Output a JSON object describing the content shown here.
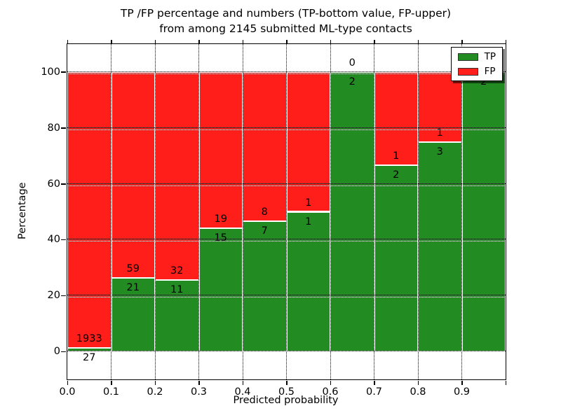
{
  "figure": {
    "title_line1": "TP /FP percentage and numbers (TP-bottom value, FP-upper)",
    "title_line2": "from among 2145 submitted ML-type contacts",
    "xlabel": "Predicted probability",
    "ylabel": "Percentage"
  },
  "legend": {
    "items": [
      {
        "label": "TP",
        "color": "#228b22"
      },
      {
        "label": "FP",
        "color": "#ff1e1a"
      }
    ]
  },
  "chart_data": {
    "type": "bar",
    "stacked": true,
    "title": "TP /FP percentage and numbers (TP-bottom value, FP-upper) from among 2145 submitted ML-type contacts",
    "xlabel": "Predicted probability",
    "ylabel": "Percentage",
    "total_contacts": 2145,
    "xlim": [
      0.0,
      1.0
    ],
    "ylim": [
      -10,
      110
    ],
    "bin_width": 0.1,
    "x_tick_labels": [
      "0.0",
      "0.1",
      "0.2",
      "0.3",
      "0.4",
      "0.5",
      "0.6",
      "0.7",
      "0.8",
      "0.9"
    ],
    "y_tick_values": [
      0,
      20,
      40,
      60,
      80,
      100
    ],
    "grid": true,
    "legend_position": "upper right",
    "series_info": [
      {
        "name": "TP",
        "color": "#228b22",
        "position": "bottom"
      },
      {
        "name": "FP",
        "color": "#ff1e1a",
        "position": "top"
      }
    ],
    "bins": [
      {
        "x0": 0.0,
        "x1": 0.1,
        "tp": 27,
        "fp": 1933,
        "tp_pct": 1.38
      },
      {
        "x0": 0.1,
        "x1": 0.2,
        "tp": 21,
        "fp": 59,
        "tp_pct": 26.25
      },
      {
        "x0": 0.2,
        "x1": 0.3,
        "tp": 11,
        "fp": 32,
        "tp_pct": 25.58
      },
      {
        "x0": 0.3,
        "x1": 0.4,
        "tp": 15,
        "fp": 19,
        "tp_pct": 44.12
      },
      {
        "x0": 0.4,
        "x1": 0.5,
        "tp": 7,
        "fp": 8,
        "tp_pct": 46.67
      },
      {
        "x0": 0.5,
        "x1": 0.6,
        "tp": 1,
        "fp": 1,
        "tp_pct": 50.0
      },
      {
        "x0": 0.6,
        "x1": 0.7,
        "tp": 2,
        "fp": 0,
        "tp_pct": 100.0
      },
      {
        "x0": 0.7,
        "x1": 0.8,
        "tp": 2,
        "fp": 1,
        "tp_pct": 66.67
      },
      {
        "x0": 0.8,
        "x1": 0.9,
        "tp": 3,
        "fp": 1,
        "tp_pct": 75.0
      },
      {
        "x0": 0.9,
        "x1": 1.0,
        "tp": 2,
        "fp": 0,
        "tp_pct": 100.0,
        "fp_label_hidden_by_legend": true
      }
    ]
  }
}
